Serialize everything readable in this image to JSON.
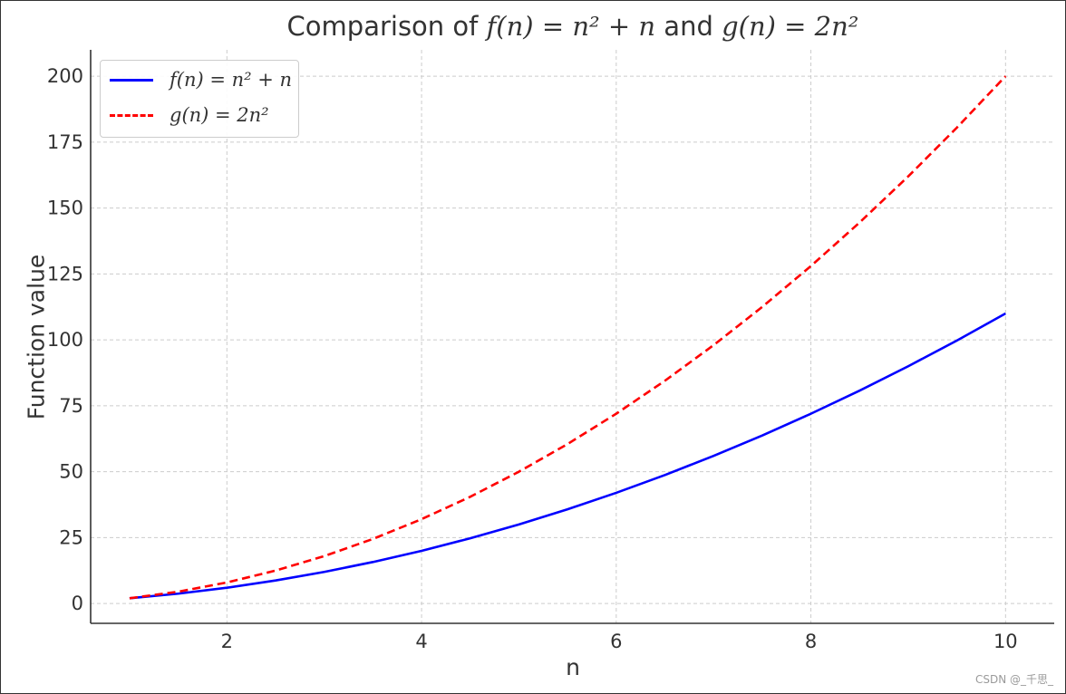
{
  "chart_data": {
    "type": "line",
    "title": {
      "prefix": "Comparison of ",
      "f_expr": "f(n) = n² + n",
      "joiner": " and ",
      "g_expr": "g(n) = 2n²"
    },
    "xlabel": "n",
    "ylabel": "Function value",
    "xlim": [
      0.6,
      10.5
    ],
    "ylim": [
      -7.5,
      210
    ],
    "xticks": [
      2,
      4,
      6,
      8,
      10
    ],
    "yticks": [
      0,
      25,
      50,
      75,
      100,
      125,
      150,
      175,
      200
    ],
    "grid": true,
    "grid_style": "dashed",
    "legend_position": "upper-left",
    "x": [
      1,
      1.5,
      2,
      2.5,
      3,
      3.5,
      4,
      4.5,
      5,
      5.5,
      6,
      6.5,
      7,
      7.5,
      8,
      8.5,
      9,
      9.5,
      10
    ],
    "series": [
      {
        "name": "f(n) = n² + n",
        "color": "#0000ff",
        "style": "solid",
        "values": [
          2,
          3.75,
          6,
          8.75,
          12,
          15.75,
          20,
          24.75,
          30,
          35.75,
          42,
          48.75,
          56,
          63.75,
          72,
          80.75,
          90,
          99.75,
          110
        ]
      },
      {
        "name": "g(n) = 2n²",
        "color": "#ff0000",
        "style": "dashed",
        "values": [
          2,
          4.5,
          8,
          12.5,
          18,
          24.5,
          32,
          40.5,
          50,
          60.5,
          72,
          84.5,
          98,
          112.5,
          128,
          144.5,
          162,
          180.5,
          200
        ]
      }
    ]
  },
  "watermark": "CSDN @_千思_"
}
